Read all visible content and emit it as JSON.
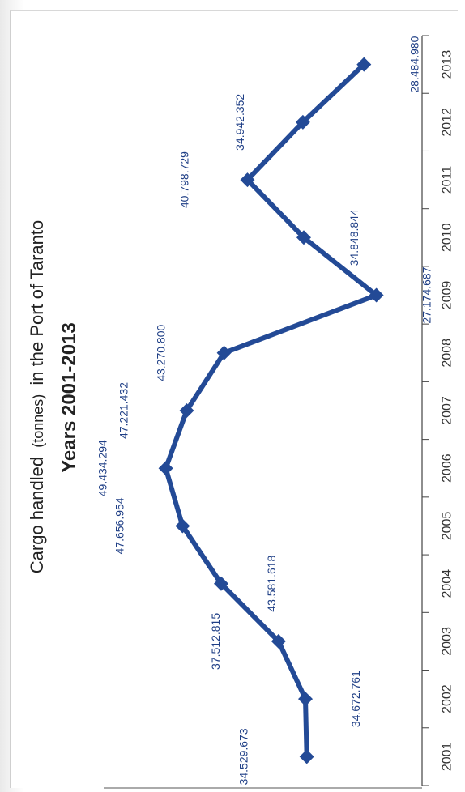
{
  "chart_data": {
    "type": "line",
    "title_main": "Cargo handled",
    "title_unit": "(tonnes)",
    "title_rest": "in the Port of Taranto",
    "subtitle": "Years 2001-2013",
    "categories": [
      "2001",
      "2002",
      "2003",
      "2004",
      "2005",
      "2006",
      "2007",
      "2008",
      "2009",
      "2010",
      "2011",
      "2012",
      "2013"
    ],
    "series": [
      {
        "values": [
          34529673,
          34672761,
          37512815,
          43581618,
          47656954,
          49434294,
          47221432,
          43270800,
          27174687,
          34848844,
          40798729,
          34942352,
          28484980
        ],
        "labels": [
          "34.529.673",
          "34.672.761",
          "37.512.815",
          "43.581.618",
          "47.656.954",
          "49.434.294",
          "47.221.432",
          "43.270.800",
          "27.174.687",
          "34.848.844",
          "40.798.729",
          "34.942.352",
          "28.484.980"
        ],
        "color": "#234a96",
        "marker": "diamond"
      }
    ],
    "grid": false,
    "legend": "none",
    "orientation": "rotated-90-ccw"
  }
}
